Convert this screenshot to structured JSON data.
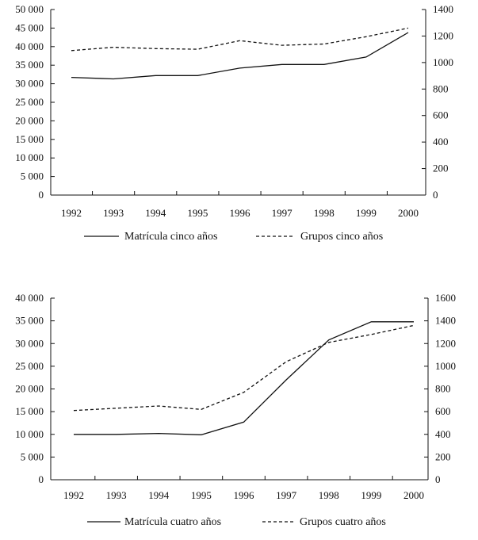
{
  "chart_data": [
    {
      "type": "line",
      "title": "",
      "categories": [
        "1992",
        "1993",
        "1994",
        "1995",
        "1996",
        "1997",
        "1998",
        "1999",
        "2000"
      ],
      "left_axis": {
        "ylim": [
          0,
          50000
        ],
        "ticks": [
          0,
          5000,
          10000,
          15000,
          20000,
          25000,
          30000,
          35000,
          40000,
          45000,
          50000
        ],
        "tick_labels": [
          "0",
          "5 000",
          "10 000",
          "15 000",
          "20 000",
          "25 000",
          "30 000",
          "35 000",
          "40 000",
          "45 000",
          "50 000"
        ]
      },
      "right_axis": {
        "ylim": [
          0,
          1400
        ],
        "ticks": [
          0,
          200,
          400,
          600,
          800,
          1000,
          1200,
          1400
        ],
        "tick_labels": [
          "0",
          "200",
          "400",
          "600",
          "800",
          "1000",
          "1200",
          "1400"
        ]
      },
      "series": [
        {
          "name": "Matrícula cinco años",
          "axis": "left",
          "style": "solid",
          "values": [
            31700,
            31300,
            32200,
            32200,
            34200,
            35200,
            35200,
            37200,
            43800
          ]
        },
        {
          "name": "Grupos cinco años",
          "axis": "right",
          "style": "dashed",
          "values": [
            1090,
            1115,
            1105,
            1100,
            1165,
            1130,
            1140,
            1195,
            1260
          ]
        }
      ]
    },
    {
      "type": "line",
      "title": "",
      "categories": [
        "1992",
        "1993",
        "1994",
        "1995",
        "1996",
        "1997",
        "1998",
        "1999",
        "2000"
      ],
      "left_axis": {
        "ylim": [
          0,
          40000
        ],
        "ticks": [
          0,
          5000,
          10000,
          15000,
          20000,
          25000,
          30000,
          35000,
          40000
        ],
        "tick_labels": [
          "0",
          "5 000",
          "10 000",
          "15 000",
          "20 000",
          "25 000",
          "30 000",
          "35 000",
          "40 000"
        ]
      },
      "right_axis": {
        "ylim": [
          0,
          1600
        ],
        "ticks": [
          0,
          200,
          400,
          600,
          800,
          1000,
          1200,
          1400,
          1600
        ],
        "tick_labels": [
          "0",
          "200",
          "400",
          "600",
          "800",
          "1000",
          "1200",
          "1400",
          "1600"
        ]
      },
      "series": [
        {
          "name": "Matrícula cuatro años",
          "axis": "left",
          "style": "solid",
          "values": [
            10000,
            10000,
            10200,
            9900,
            12700,
            22000,
            30800,
            34800,
            34800
          ]
        },
        {
          "name": "Grupos cuatro años",
          "axis": "right",
          "style": "dashed",
          "values": [
            610,
            630,
            650,
            620,
            770,
            1040,
            1210,
            1280,
            1360
          ]
        }
      ]
    }
  ]
}
